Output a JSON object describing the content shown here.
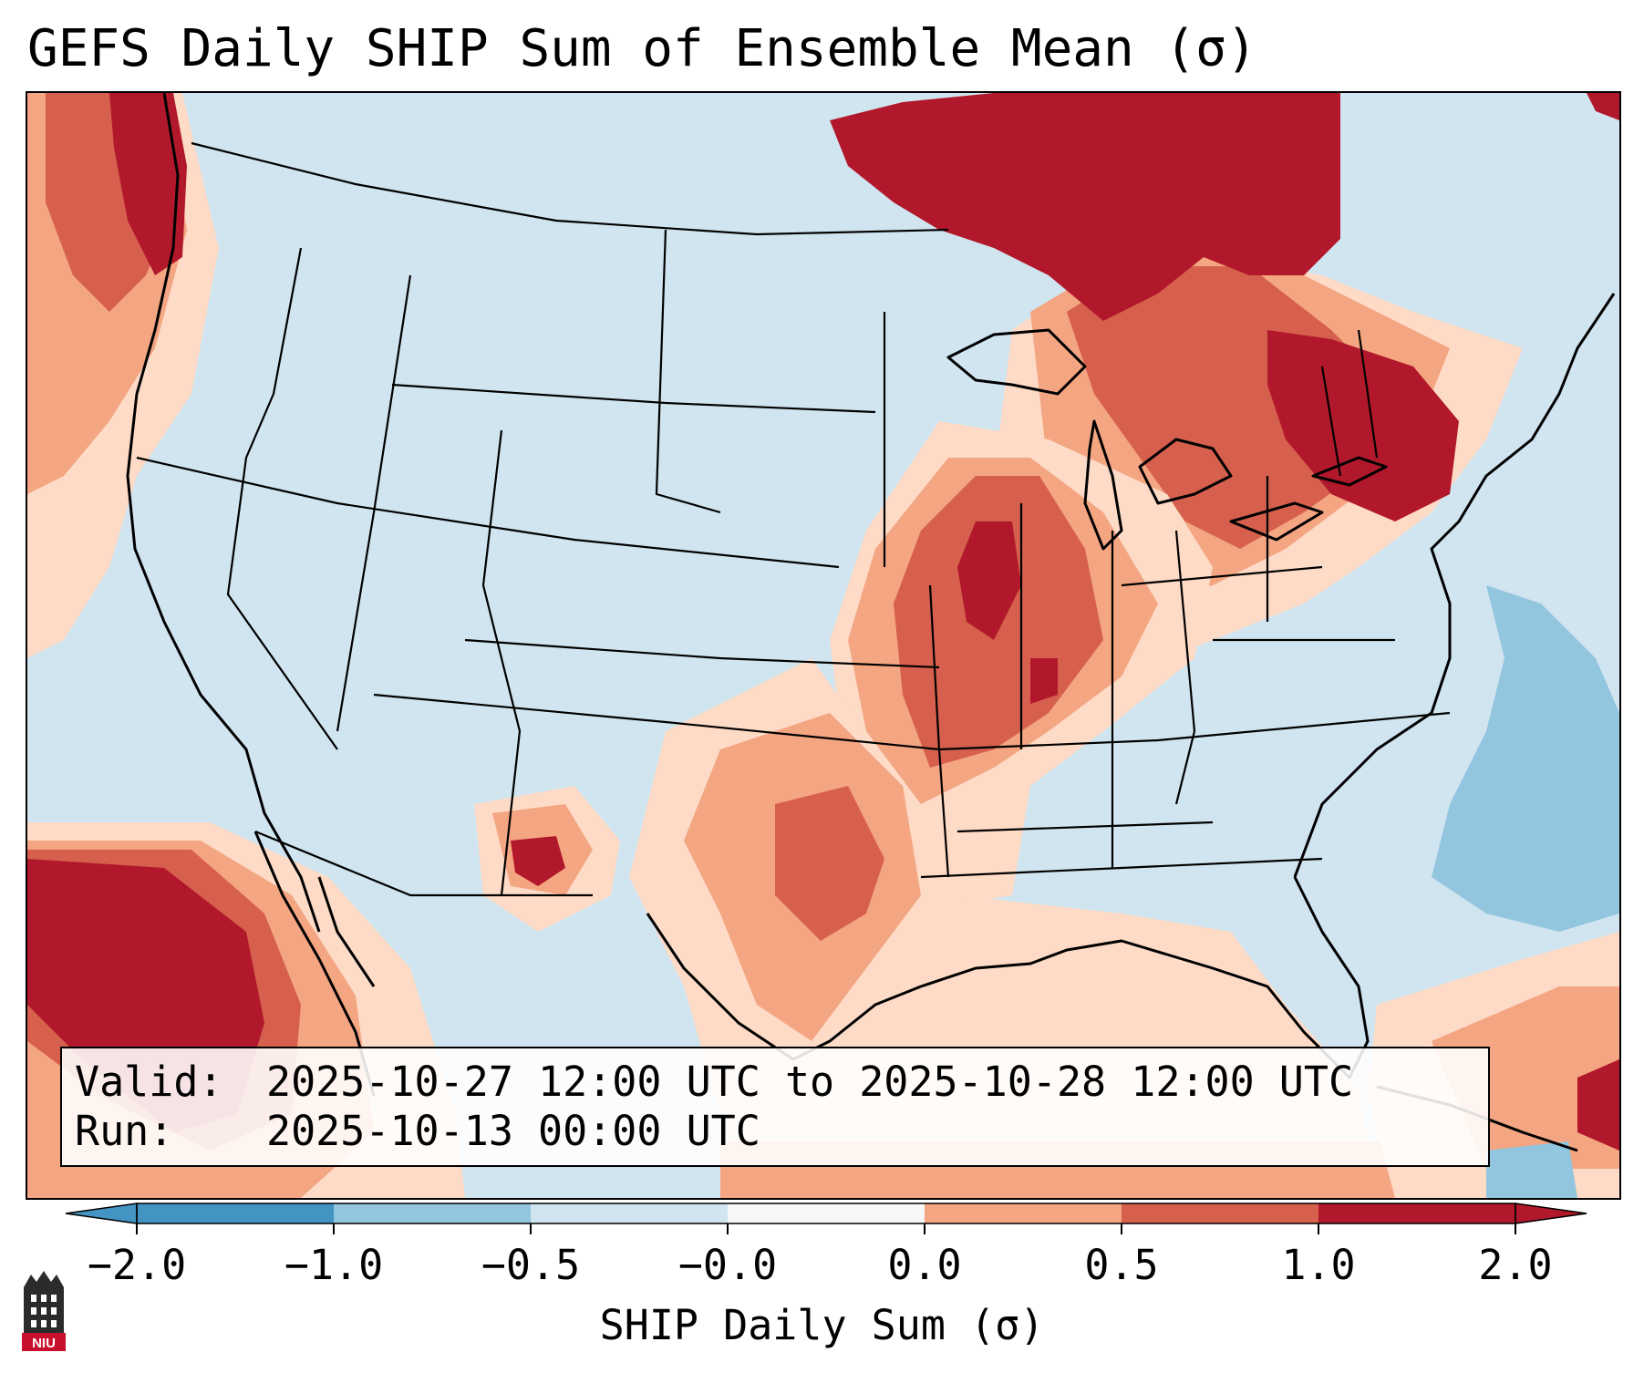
{
  "title": "GEFS Daily SHIP Sum of Ensemble Mean (σ)",
  "valid_label": "Valid:",
  "valid_value": "2025-10-27 12:00 UTC to 2025-10-28 12:00 UTC",
  "run_label": "Run:",
  "run_value": "2025-10-13 00:00 UTC",
  "colorbar": {
    "label": "SHIP Daily Sum (σ)",
    "ticks": [
      "−2.0",
      "−1.0",
      "−0.5",
      "−0.0",
      "0.0",
      "0.5",
      "1.0",
      "2.0"
    ],
    "colors": [
      "#4393c3",
      "#92c5de",
      "#d1e5f0",
      "#f7f7f7",
      "#fddbc7",
      "#f4a582",
      "#d6604d",
      "#b2182b"
    ],
    "extend": "both"
  },
  "logo": {
    "text": "NIU",
    "colors": {
      "tower": "#2b2b2b",
      "badge": "#c8102e"
    }
  },
  "map": {
    "projection": "Lambert conformal, CONUS",
    "background_color": "#d1e5f0",
    "regions": [
      "Pacific Northwest coast: 0.5 to >2.0",
      "Canada north of Great Lakes and Northeast US: 1.0 to >2.0",
      "Mississippi and Ohio Valleys: 0.5 to >2.0",
      "Southern Plains and Gulf Coast: 0.0 to 1.0",
      "Southern New Mexico / El Paso: 1.0 to >2.0",
      "Eastern Pacific off Baja California: 1.0 to >2.0",
      "Caribbean near Cuba and Hispaniola: 0.5 to >2.0",
      "Western Atlantic offshore: -1.0 to -0.5",
      "Western US interior: -0.5 to -0.0"
    ]
  }
}
